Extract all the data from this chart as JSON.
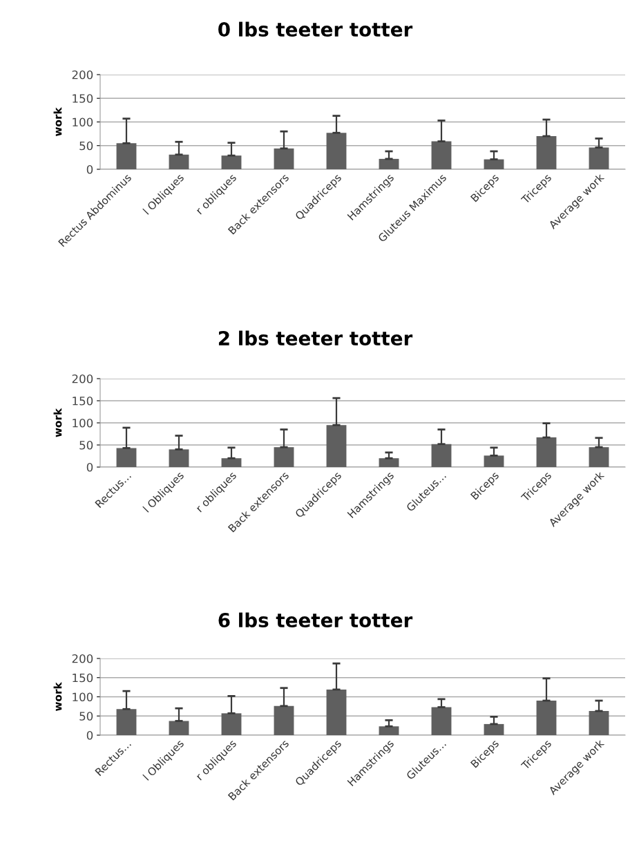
{
  "chart_data": [
    {
      "type": "bar",
      "title": "0 lbs teeter totter",
      "ylabel": "work",
      "categories": [
        "Rectus Abdominus",
        "l Obliques",
        "r obliques",
        "Back extensors",
        "Quadriceps",
        "Hamstrings",
        "Gluteus Maximus",
        "Biceps",
        "Triceps",
        "Average work"
      ],
      "values": [
        55,
        31,
        29,
        44,
        77,
        22,
        59,
        21,
        70,
        46
      ],
      "color": "#5f5f5f",
      "errors": [
        [
          55,
          107
        ],
        [
          31,
          58
        ],
        [
          29,
          56
        ],
        [
          44,
          80
        ],
        [
          77,
          113
        ],
        [
          22,
          38
        ],
        [
          59,
          103
        ],
        [
          21,
          38
        ],
        [
          70,
          105
        ],
        [
          46,
          65
        ]
      ],
      "ylim": [
        0,
        200
      ],
      "yticks": [
        0,
        50,
        100,
        150,
        200
      ],
      "grid": "y"
    },
    {
      "type": "bar",
      "title": "2 lbs teeter totter",
      "ylabel": "work",
      "categories": [
        "Rectus…",
        "l Obliques",
        "r obliques",
        "Back extensors",
        "Quadriceps",
        "Hamstrings",
        "Gluteus…",
        "Biceps",
        "Triceps",
        "Average work"
      ],
      "values": [
        43,
        40,
        20,
        45,
        95,
        20,
        52,
        26,
        67,
        45
      ],
      "color": "#5f5f5f",
      "errors": [
        [
          43,
          89
        ],
        [
          40,
          71
        ],
        [
          20,
          44
        ],
        [
          45,
          85
        ],
        [
          95,
          156
        ],
        [
          20,
          33
        ],
        [
          52,
          85
        ],
        [
          26,
          44
        ],
        [
          67,
          99
        ],
        [
          45,
          66
        ]
      ],
      "ylim": [
        0,
        200
      ],
      "yticks": [
        0,
        50,
        100,
        150,
        200
      ],
      "grid": "y"
    },
    {
      "type": "bar",
      "title": "6 lbs teeter totter",
      "ylabel": "work",
      "categories": [
        "Rectus…",
        "l Obliques",
        "r obliques",
        "Back extensors",
        "Quadriceps",
        "Hamstrings",
        "Gluteus…",
        "Biceps",
        "Triceps",
        "Average work"
      ],
      "values": [
        68,
        37,
        57,
        76,
        119,
        23,
        73,
        29,
        90,
        63
      ],
      "color": "#5f5f5f",
      "errors": [
        [
          68,
          115
        ],
        [
          37,
          70
        ],
        [
          57,
          102
        ],
        [
          76,
          123
        ],
        [
          119,
          187
        ],
        [
          23,
          39
        ],
        [
          73,
          94
        ],
        [
          29,
          48
        ],
        [
          90,
          148
        ],
        [
          63,
          90
        ]
      ],
      "ylim": [
        0,
        200
      ],
      "yticks": [
        0,
        50,
        100,
        150,
        200
      ],
      "grid": "y"
    }
  ]
}
